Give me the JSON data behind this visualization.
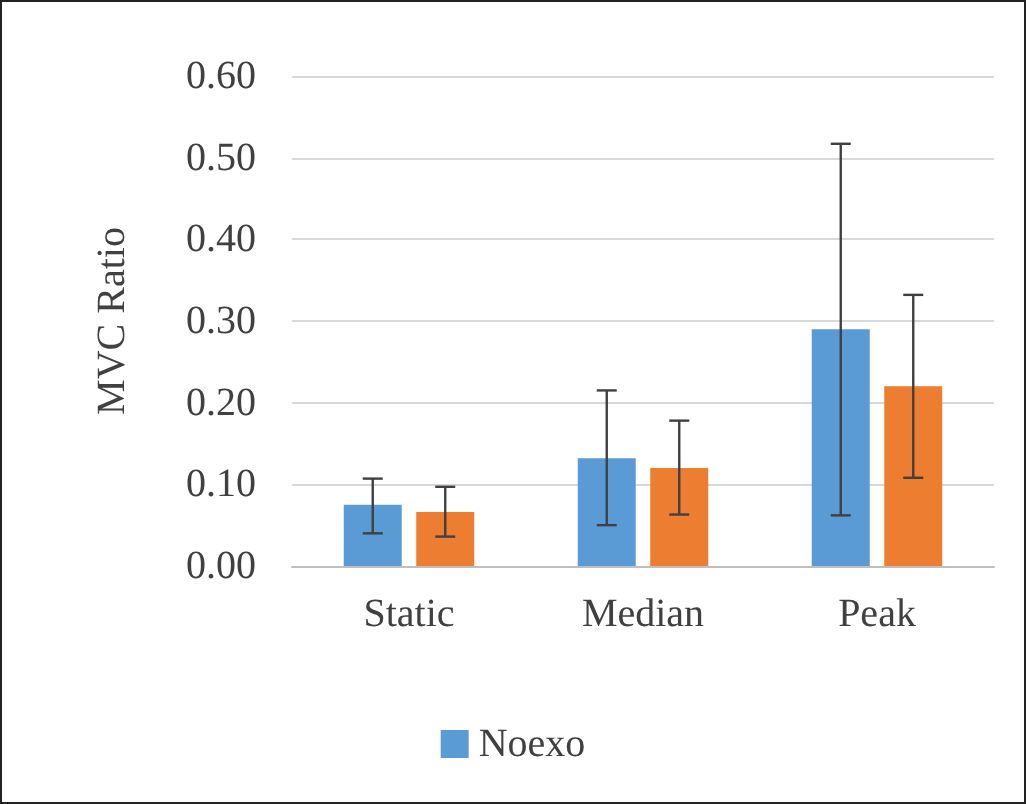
{
  "chart_data": {
    "type": "bar",
    "ylabel": "MVC Ratio",
    "categories": [
      "Static",
      "Median",
      "Peak"
    ],
    "series": [
      {
        "name": "Noexo",
        "color": "#5b9bd5",
        "values": [
          0.075,
          0.132,
          0.29
        ],
        "errors": [
          [
            0.04,
            0.107
          ],
          [
            0.05,
            0.215
          ],
          [
            0.062,
            0.517
          ]
        ]
      },
      {
        "color": "#ed7d31",
        "values": [
          0.066,
          0.12,
          0.22
        ],
        "errors": [
          [
            0.036,
            0.097
          ],
          [
            0.063,
            0.178
          ],
          [
            0.108,
            0.332
          ]
        ]
      }
    ],
    "ylim": [
      0,
      0.6
    ],
    "yticks": [
      {
        "value": 0,
        "label": "0.00"
      },
      {
        "value": 0.1,
        "label": "0.10"
      },
      {
        "value": 0.2,
        "label": "0.20"
      },
      {
        "value": 0.3,
        "label": "0.30"
      },
      {
        "value": 0.4,
        "label": "0.40"
      },
      {
        "value": 0.5,
        "label": "0.50"
      },
      {
        "value": 0.6,
        "label": "0.60"
      }
    ],
    "grid": "y",
    "legend": "bottom"
  }
}
